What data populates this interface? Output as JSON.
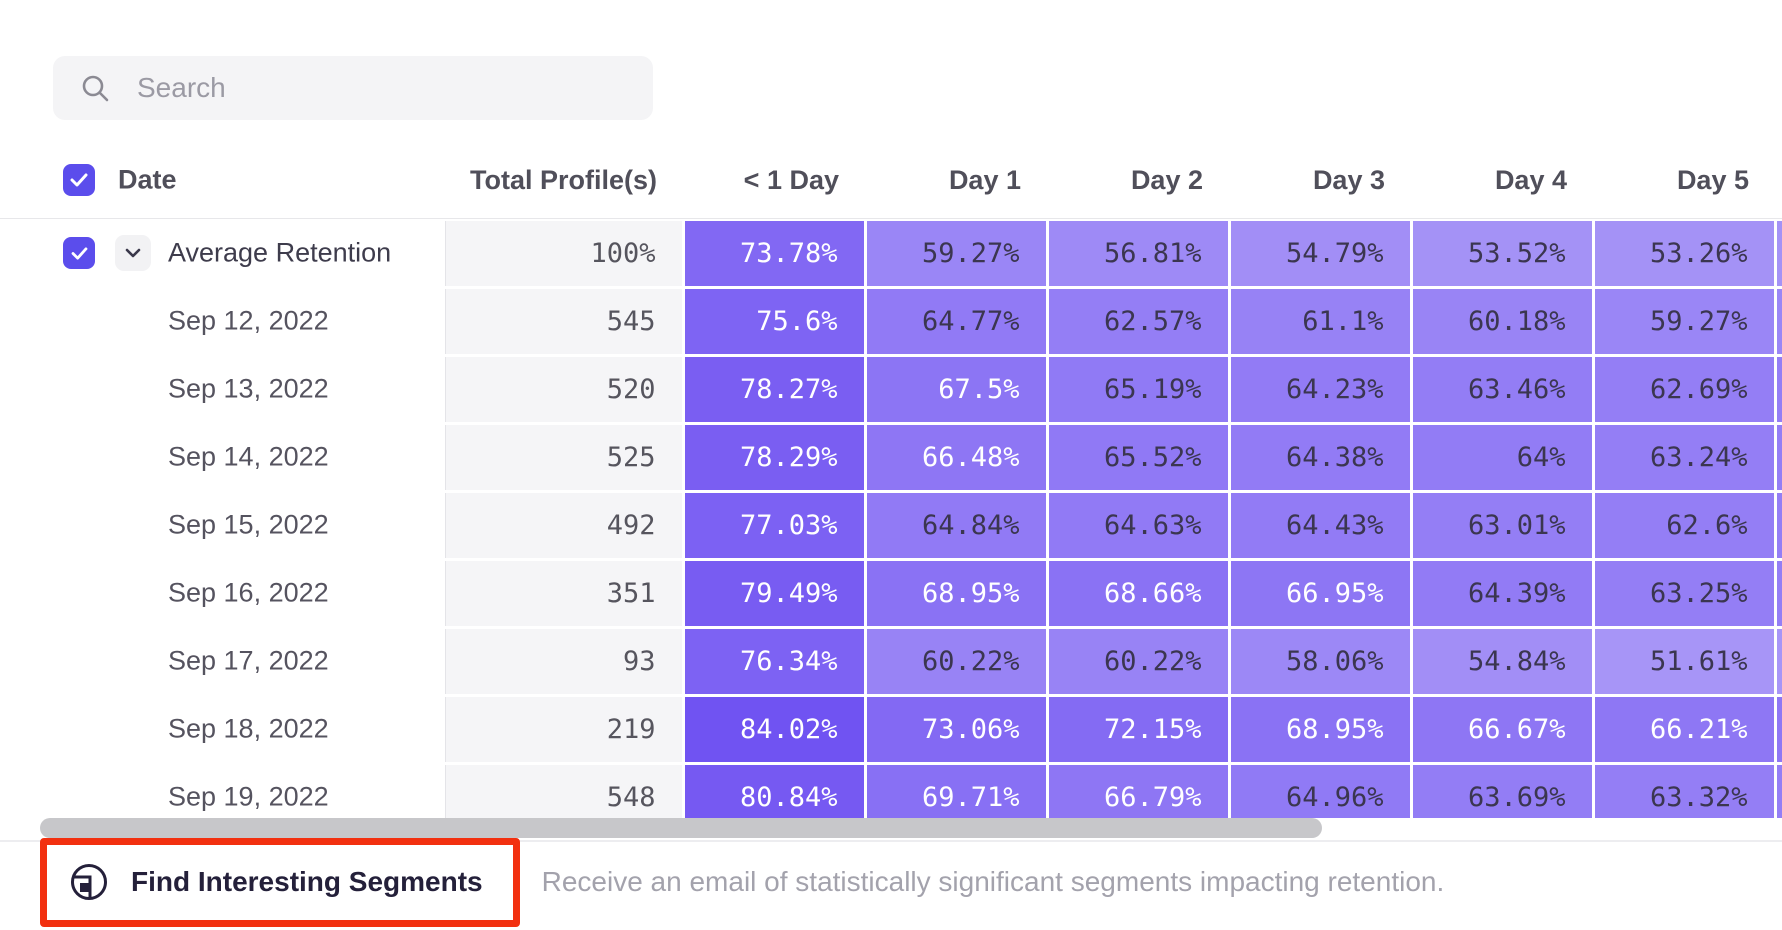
{
  "search": {
    "placeholder": "Search"
  },
  "table": {
    "columns": [
      "Date",
      "Total Profile(s)",
      "< 1 Day",
      "Day 1",
      "Day 2",
      "Day 3",
      "Day 4",
      "Day 5"
    ],
    "header_checkbox_checked": true,
    "rows": [
      {
        "label": "Average Retention",
        "is_average": true,
        "checked": true,
        "total": "100%",
        "values": [
          73.78,
          59.27,
          56.81,
          54.79,
          53.52,
          53.26
        ]
      },
      {
        "label": "Sep 12, 2022",
        "total": "545",
        "values": [
          75.6,
          64.77,
          62.57,
          61.1,
          60.18,
          59.27
        ]
      },
      {
        "label": "Sep 13, 2022",
        "total": "520",
        "values": [
          78.27,
          67.5,
          65.19,
          64.23,
          63.46,
          62.69
        ]
      },
      {
        "label": "Sep 14, 2022",
        "total": "525",
        "values": [
          78.29,
          66.48,
          65.52,
          64.38,
          64,
          63.24
        ]
      },
      {
        "label": "Sep 15, 2022",
        "total": "492",
        "values": [
          77.03,
          64.84,
          64.63,
          64.43,
          63.01,
          62.6
        ]
      },
      {
        "label": "Sep 16, 2022",
        "total": "351",
        "values": [
          79.49,
          68.95,
          68.66,
          66.95,
          64.39,
          63.25
        ]
      },
      {
        "label": "Sep 17, 2022",
        "total": "93",
        "values": [
          76.34,
          60.22,
          60.22,
          58.06,
          54.84,
          51.61
        ]
      },
      {
        "label": "Sep 18, 2022",
        "total": "219",
        "values": [
          84.02,
          73.06,
          72.15,
          68.95,
          66.67,
          66.21
        ]
      },
      {
        "label": "Sep 19, 2022",
        "total": "548",
        "values": [
          80.84,
          69.71,
          66.79,
          64.96,
          63.69,
          63.32
        ]
      }
    ]
  },
  "footer": {
    "button_label": "Find Interesting Segments",
    "description": "Receive an email of statistically significant segments impacting retention."
  },
  "colors": {
    "cell_base_rgb": "85,50,239",
    "white_text_threshold": 66,
    "cell_dark_text": "#3b3650",
    "accent_checkbox": "#5b4dec",
    "annotation_red": "#f23010",
    "scrollbar_thumb": "#c7c7ca"
  }
}
